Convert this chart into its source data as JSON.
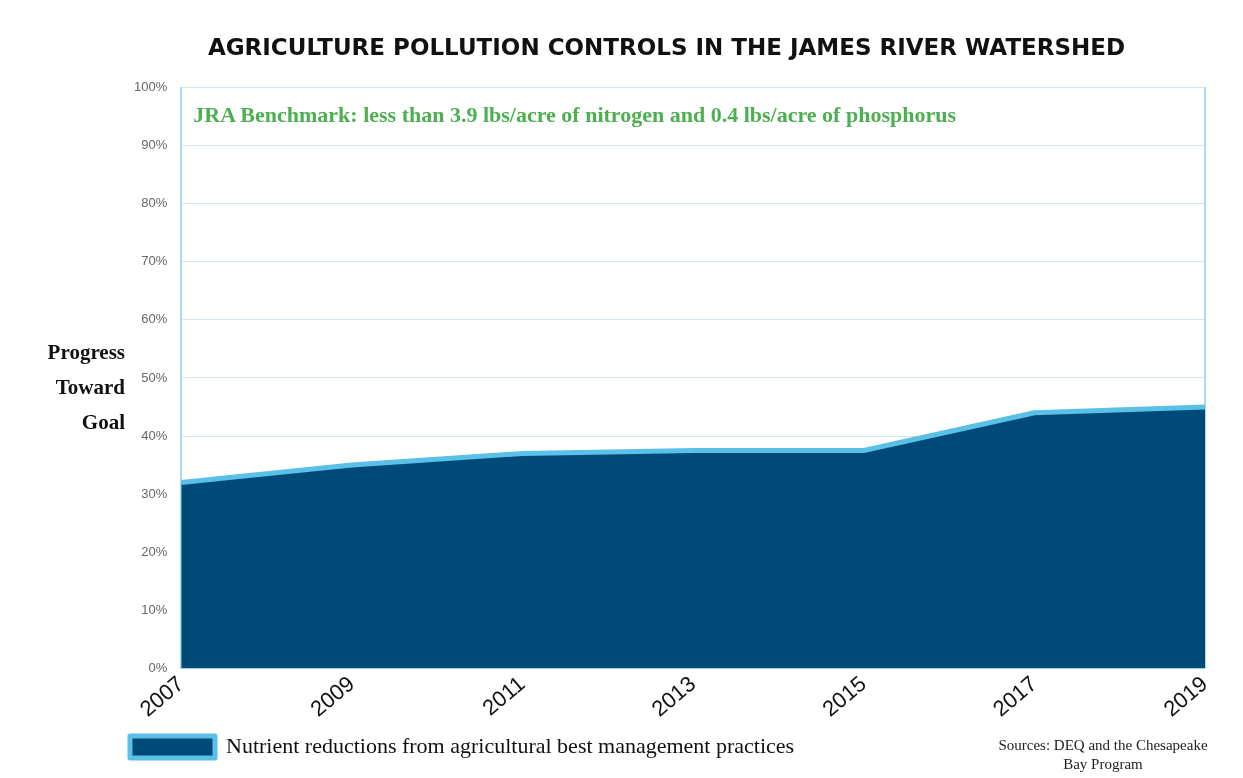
{
  "chart_data": {
    "type": "area",
    "title": "AGRICULTURE POLLUTION CONTROLS IN THE JAMES RIVER WATERSHED",
    "ylabel": "Progress Toward Goal",
    "x": [
      2007,
      2009,
      2011,
      2013,
      2015,
      2017,
      2019
    ],
    "series": [
      {
        "name": "Nutrient reductions from agricultural best management practices",
        "color": "#004a77",
        "values": [
          32,
          35,
          37,
          37.5,
          37.5,
          44,
          45
        ]
      }
    ],
    "xlim": [
      2007,
      2019
    ],
    "xticks": [
      2007,
      2009,
      2011,
      2013,
      2015,
      2017,
      2019
    ],
    "ylim": [
      0,
      100
    ],
    "yticks": [
      {
        "value": 0,
        "label": "0%"
      },
      {
        "value": 10,
        "label": "10%"
      },
      {
        "value": 20,
        "label": "20%"
      },
      {
        "value": 30,
        "label": "30%"
      },
      {
        "value": 40,
        "label": "40%"
      },
      {
        "value": 50,
        "label": "50%"
      },
      {
        "value": 60,
        "label": "60%"
      },
      {
        "value": 70,
        "label": "70%"
      },
      {
        "value": 80,
        "label": "80%"
      },
      {
        "value": 90,
        "label": "90%"
      },
      {
        "value": 100,
        "label": "100%"
      }
    ],
    "grid": "y",
    "legend": "bottom left",
    "annotations": [
      "JRA Benchmark: less than 3.9 lbs/acre of nitrogen and 0.4 lbs/acre of phosphorus",
      "Sources: DEQ and the Chesapeake Bay Program"
    ]
  }
}
